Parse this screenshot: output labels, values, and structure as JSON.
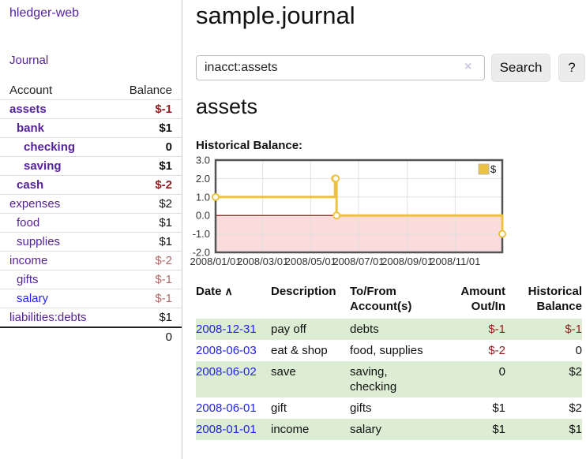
{
  "app": {
    "brand": "hledger-web",
    "nav_journal": "Journal"
  },
  "page": {
    "title": "sample.journal",
    "account_heading": "assets"
  },
  "search": {
    "value": "inacct:assets",
    "clear_icon": "×",
    "button_label": "Search",
    "help_label": "?"
  },
  "sidebar_accounts": {
    "headers": {
      "account": "Account",
      "balance": "Balance"
    },
    "rows": [
      {
        "name": "assets",
        "depth": 1,
        "bold": true,
        "balance": "$-1",
        "balance_style": "neg-strong"
      },
      {
        "name": "bank",
        "depth": 2,
        "bold": true,
        "balance": "$1",
        "balance_style": "pos"
      },
      {
        "name": "checking",
        "depth": 3,
        "bold": true,
        "balance": "0",
        "balance_style": "pos"
      },
      {
        "name": "saving",
        "depth": 3,
        "bold": true,
        "balance": "$1",
        "balance_style": "pos"
      },
      {
        "name": "cash",
        "depth": 2,
        "bold": true,
        "balance": "$-2",
        "balance_style": "neg-strong"
      },
      {
        "name": "expenses",
        "depth": 1,
        "bold": false,
        "balance": "$2",
        "balance_style": "pos"
      },
      {
        "name": "food",
        "depth": 2,
        "bold": false,
        "balance": "$1",
        "balance_style": "pos"
      },
      {
        "name": "supplies",
        "depth": 2,
        "bold": false,
        "balance": "$1",
        "balance_style": "pos"
      },
      {
        "name": "income",
        "depth": 1,
        "bold": false,
        "balance": "$-2",
        "balance_style": "neg-soft"
      },
      {
        "name": "gifts",
        "depth": 2,
        "bold": false,
        "balance": "$-1",
        "balance_style": "neg-soft"
      },
      {
        "name": "salary",
        "depth": 2,
        "bold": false,
        "balance": "$-1",
        "balance_style": "neg-soft",
        "link_color": "blue"
      },
      {
        "name": "liabilities:debts",
        "depth": 1,
        "bold": false,
        "balance": "$1",
        "balance_style": "pos"
      }
    ],
    "total": "0"
  },
  "chart_data": {
    "type": "line",
    "title": "Historical Balance:",
    "step": true,
    "series": [
      {
        "name": "$",
        "color": "#edc240",
        "points": [
          [
            "2008-01-01",
            1
          ],
          [
            "2008-06-01",
            2
          ],
          [
            "2008-06-02",
            2
          ],
          [
            "2008-06-03",
            0
          ],
          [
            "2008-12-31",
            -1
          ]
        ]
      }
    ],
    "x_range": [
      "2008-01-01",
      "2008-12-31"
    ],
    "ylim": [
      -2,
      3
    ],
    "y_ticks": [
      -2,
      -1,
      0,
      1,
      2,
      3
    ],
    "y_tick_labels": [
      "-2.0",
      "-1.0",
      "0.0",
      "1.0",
      "2.0",
      "3.0"
    ],
    "x_ticks": [
      {
        "date": "2008-01-01",
        "label": "2008/01/01"
      },
      {
        "date": "2008-03-01",
        "label": "2008/03/01"
      },
      {
        "date": "2008-05-01",
        "label": "2008/05/01"
      },
      {
        "date": "2008-07-01",
        "label": "2008/07/01"
      },
      {
        "date": "2008-09-01",
        "label": "2008/09/01"
      },
      {
        "date": "2008-11-01",
        "label": "2008/11/01"
      }
    ],
    "legend_position": "top-right",
    "grid": true,
    "negative_region_color": "#fadcdc",
    "zero_line_color": "#8b0000"
  },
  "register": {
    "headers": {
      "date": "Date",
      "sort_icon": "∧",
      "description": "Description",
      "tofrom_line1": "To/From",
      "tofrom_line2": "Account(s)",
      "amount_line1": "Amount",
      "amount_line2": "Out/In",
      "balance_line1": "Historical",
      "balance_line2": "Balance"
    },
    "rows": [
      {
        "date": "2008-12-31",
        "description": "pay off",
        "accounts": "debts",
        "amount": "$-1",
        "balance": "$-1"
      },
      {
        "date": "2008-06-03",
        "description": "eat & shop",
        "accounts": "food, supplies",
        "amount": "$-2",
        "balance": "0"
      },
      {
        "date": "2008-06-02",
        "description": "save",
        "accounts": "saving, checking",
        "amount": "0",
        "balance": "$2"
      },
      {
        "date": "2008-06-01",
        "description": "gift",
        "accounts": "gifts",
        "amount": "$1",
        "balance": "$2"
      },
      {
        "date": "2008-01-01",
        "description": "income",
        "accounts": "salary",
        "amount": "$1",
        "balance": "$1"
      }
    ]
  },
  "colors": {
    "link_purple": "#55229b",
    "link_blue": "#2222ee",
    "negative_strong": "#8f1d1d",
    "negative_soft": "#b26969",
    "row_stripe_green": "#dcedd3",
    "chart_line_gold": "#edc240",
    "chart_negative_fill": "#fadcdc",
    "chart_zero_line": "#8b0000",
    "chart_border_gray": "#545454"
  }
}
